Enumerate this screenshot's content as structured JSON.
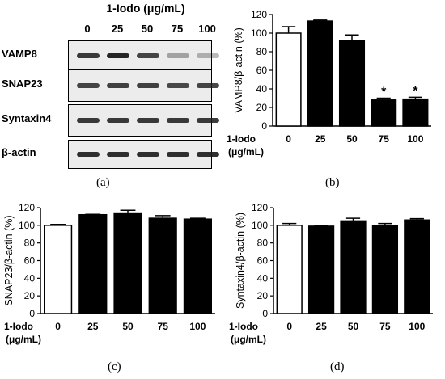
{
  "panel_labels": [
    "(a)",
    "(b)",
    "(c)",
    "(d)"
  ],
  "blot": {
    "title": "1-Iodo (μg/mL)",
    "concentrations": [
      "0",
      "25",
      "50",
      "75",
      "100"
    ],
    "rows": [
      {
        "label": "VAMP8",
        "intensity": [
          0.85,
          0.95,
          0.8,
          0.35,
          0.3
        ]
      },
      {
        "label": "SNAP23",
        "intensity": [
          0.8,
          0.82,
          0.82,
          0.78,
          0.8
        ]
      },
      {
        "label": "Syntaxin4",
        "intensity": [
          0.85,
          0.85,
          0.85,
          0.85,
          0.85
        ]
      },
      {
        "label": "β-actin",
        "intensity": [
          0.9,
          0.9,
          0.9,
          0.9,
          0.9
        ]
      }
    ]
  },
  "x_axis_label_lines": [
    "1-Iodo",
    "(μg/mL)"
  ],
  "chart_data": [
    {
      "type": "bar",
      "panel": "(b)",
      "categories": [
        "0",
        "25",
        "50",
        "75",
        "100"
      ],
      "values": [
        100,
        113,
        92,
        28,
        29
      ],
      "errors": [
        7,
        1,
        6,
        2,
        2
      ],
      "significant": [
        false,
        false,
        false,
        true,
        true
      ],
      "significance_marker": "*",
      "first_bar": "white",
      "other_bars": "black",
      "ylabel": "VAMP8/β-actin (%)",
      "ylim": [
        0,
        120
      ],
      "yticks": [
        "0",
        "20",
        "40",
        "60",
        "80",
        "100",
        "120"
      ]
    },
    {
      "type": "bar",
      "panel": "(c)",
      "categories": [
        "0",
        "25",
        "50",
        "75",
        "100"
      ],
      "values": [
        100,
        112,
        114,
        108,
        107
      ],
      "errors": [
        1,
        0.5,
        3,
        3,
        1
      ],
      "significant": [
        false,
        false,
        false,
        false,
        false
      ],
      "first_bar": "white",
      "other_bars": "black",
      "ylabel": "SNAP23/β-actin (%)",
      "ylim": [
        0,
        120
      ],
      "yticks": [
        "0",
        "20",
        "40",
        "60",
        "80",
        "100",
        "120"
      ]
    },
    {
      "type": "bar",
      "panel": "(d)",
      "categories": [
        "0",
        "25",
        "50",
        "75",
        "100"
      ],
      "values": [
        100,
        99,
        105,
        100,
        106
      ],
      "errors": [
        2,
        0.5,
        3,
        2,
        1.5
      ],
      "significant": [
        false,
        false,
        false,
        false,
        false
      ],
      "first_bar": "white",
      "other_bars": "black",
      "ylabel": "Syntaxin4/β-actin (%)",
      "ylim": [
        0,
        120
      ],
      "yticks": [
        "0",
        "20",
        "40",
        "60",
        "80",
        "100",
        "120"
      ]
    }
  ]
}
